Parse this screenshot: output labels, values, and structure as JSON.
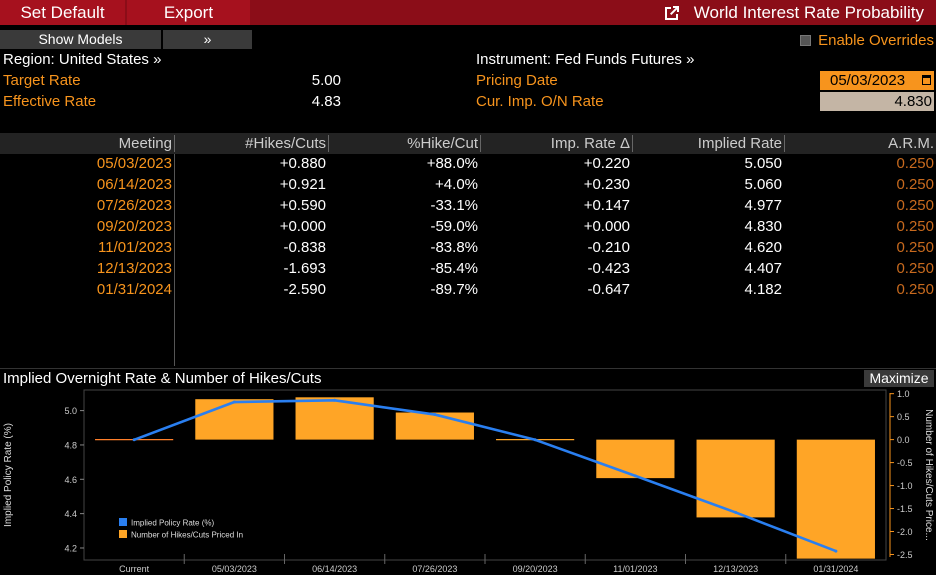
{
  "toolbar": {
    "set_default": "Set Default",
    "export": "Export",
    "title": "World Interest Rate Probability"
  },
  "controls": {
    "show_models": "Show Models",
    "more": "»",
    "enable_overrides": "Enable Overrides"
  },
  "info": {
    "region": "Region: United States »",
    "instrument": "Instrument: Fed Funds Futures »",
    "target_rate_label": "Target Rate",
    "target_rate_value": "5.00",
    "effective_rate_label": "Effective Rate",
    "effective_rate_value": "4.83",
    "pricing_date_label": "Pricing Date",
    "pricing_date_value": "05/03/2023",
    "cur_imp_label": "Cur. Imp. O/N Rate",
    "cur_imp_value": "4.830"
  },
  "table": {
    "headers": [
      "Meeting",
      "#Hikes/Cuts",
      "%Hike/Cut",
      "Imp. Rate Δ",
      "Implied Rate",
      "A.R.M."
    ],
    "rows": [
      [
        "05/03/2023",
        "+0.880",
        "+88.0%",
        "+0.220",
        "5.050",
        "0.250"
      ],
      [
        "06/14/2023",
        "+0.921",
        "+4.0%",
        "+0.230",
        "5.060",
        "0.250"
      ],
      [
        "07/26/2023",
        "+0.590",
        "-33.1%",
        "+0.147",
        "4.977",
        "0.250"
      ],
      [
        "09/20/2023",
        "+0.000",
        "-59.0%",
        "+0.000",
        "4.830",
        "0.250"
      ],
      [
        "11/01/2023",
        "-0.838",
        "-83.8%",
        "-0.210",
        "4.620",
        "0.250"
      ],
      [
        "12/13/2023",
        "-1.693",
        "-85.4%",
        "-0.423",
        "4.407",
        "0.250"
      ],
      [
        "01/31/2024",
        "-2.590",
        "-89.7%",
        "-0.647",
        "4.182",
        "0.250"
      ]
    ]
  },
  "chart_panel": {
    "title": "Implied Overnight Rate & Number of Hikes/Cuts",
    "maximize": "Maximize"
  },
  "colors": {
    "accent": "#f7941d",
    "line": "#2a7ff0",
    "bar": "#ffa526",
    "topbar": "#8b0d18"
  },
  "chart_data": {
    "type": "bar",
    "categories": [
      "Current",
      "05/03/2023",
      "06/14/2023",
      "07/26/2023",
      "09/20/2023",
      "11/01/2023",
      "12/13/2023",
      "01/31/2024"
    ],
    "series": [
      {
        "name": "Implied Policy Rate (%)",
        "type": "line",
        "axis": "left",
        "values": [
          4.83,
          5.05,
          5.06,
          4.977,
          4.83,
          4.62,
          4.407,
          4.182
        ]
      },
      {
        "name": "Number of Hikes/Cuts Priced In",
        "type": "bar",
        "axis": "right",
        "values": [
          0.0,
          0.88,
          0.921,
          0.59,
          0.0,
          -0.838,
          -1.693,
          -2.59
        ]
      }
    ],
    "ylabel": "Implied Policy Rate (%)",
    "y2label": "Number of Hikes/Cuts Price...",
    "ylim": [
      4.13,
      5.12
    ],
    "y2lim": [
      -2.62,
      1.08
    ],
    "yticks": [
      "4.2",
      "4.4",
      "4.6",
      "4.8",
      "5.0"
    ],
    "y2ticks": [
      "1.0",
      "0.5",
      "0.0",
      "-0.5",
      "-1.0",
      "-1.5",
      "-2.0",
      "-2.5"
    ],
    "legend_position": "bottom-left"
  }
}
